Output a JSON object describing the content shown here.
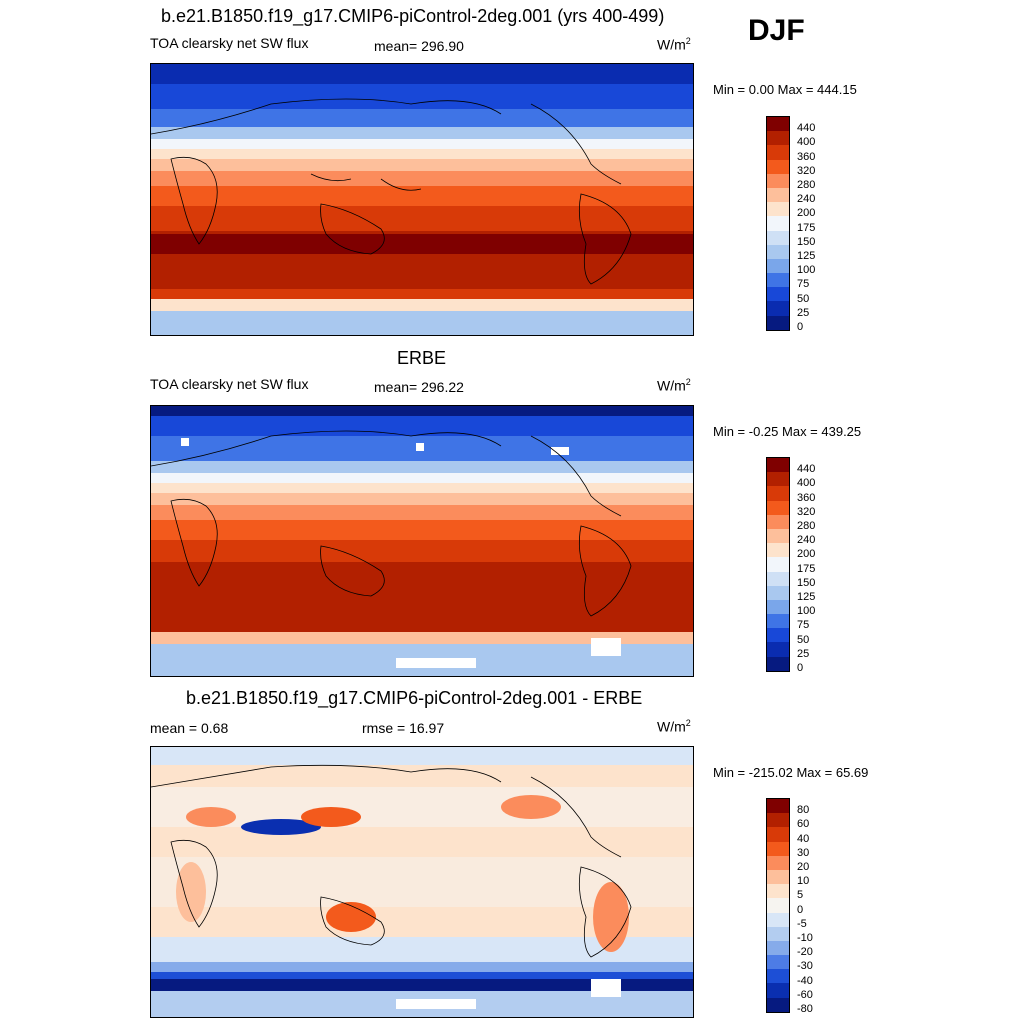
{
  "season": "DJF",
  "panels": [
    {
      "title": "b.e21.B1850.f19_g17.CMIP6-piControl-2deg.001 (yrs 400-499)",
      "left_label": "TOA clearsky net SW flux",
      "center_label": "mean= 296.90",
      "units": "W/m",
      "units_sup": "2",
      "minmax": "Min =   0.00 Max = 444.15",
      "colorbar": {
        "labels": [
          "440",
          "400",
          "360",
          "320",
          "280",
          "240",
          "200",
          "175",
          "150",
          "125",
          "100",
          "75",
          "50",
          "25",
          "0"
        ],
        "colors": [
          "#7f0000",
          "#b22000",
          "#d83a08",
          "#f35a1c",
          "#fb8c5c",
          "#fdbf9b",
          "#fde3cc",
          "#f2f6fb",
          "#cfe0f5",
          "#a9c8ef",
          "#7aa6ea",
          "#3f74e6",
          "#1848d8",
          "#0a2cb0",
          "#061a80"
        ]
      }
    },
    {
      "title": "ERBE",
      "left_label": "TOA clearsky net SW flux",
      "center_label": "mean= 296.22",
      "units": "W/m",
      "units_sup": "2",
      "minmax": "Min =  -0.25 Max = 439.25",
      "colorbar": {
        "labels": [
          "440",
          "400",
          "360",
          "320",
          "280",
          "240",
          "200",
          "175",
          "150",
          "125",
          "100",
          "75",
          "50",
          "25",
          "0"
        ],
        "colors": [
          "#7f0000",
          "#b22000",
          "#d83a08",
          "#f35a1c",
          "#fb8c5c",
          "#fdbf9b",
          "#fde3cc",
          "#f2f6fb",
          "#cfe0f5",
          "#a9c8ef",
          "#7aa6ea",
          "#3f74e6",
          "#1848d8",
          "#0a2cb0",
          "#061a80"
        ]
      }
    },
    {
      "title": "b.e21.B1850.f19_g17.CMIP6-piControl-2deg.001 - ERBE",
      "left_label": "mean =   0.68",
      "center_label": "rmse =  16.97",
      "units": "W/m",
      "units_sup": "2",
      "minmax": "Min = -215.02 Max =  65.69",
      "colorbar": {
        "labels": [
          "80",
          "60",
          "40",
          "30",
          "20",
          "10",
          "5",
          "0",
          "-5",
          "-10",
          "-20",
          "-30",
          "-40",
          "-60",
          "-80"
        ],
        "colors": [
          "#7f0000",
          "#b22000",
          "#d83a08",
          "#f35a1c",
          "#fb8c5c",
          "#fdbf9b",
          "#fde3cc",
          "#f6f4f0",
          "#d8e6f7",
          "#b3cdf0",
          "#86abea",
          "#4d7ce6",
          "#1d4fd6",
          "#0a2fb0",
          "#061a80"
        ]
      }
    }
  ]
}
